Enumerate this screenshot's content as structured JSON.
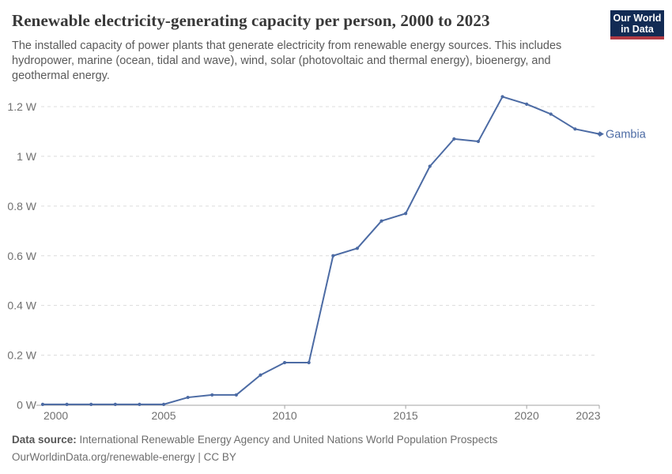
{
  "header": {
    "title": "Renewable electricity-generating capacity per person, 2000 to 2023",
    "subtitle": "The installed capacity of power plants that generate electricity from renewable energy sources. This includes hydropower, marine (ocean, tidal and wave), wind, solar (photovoltaic and thermal energy), bioenergy, and geothermal energy.",
    "logo": {
      "line1": "Our World",
      "line2": "in Data",
      "bg_color": "#122b54",
      "bar_color": "#b13a44"
    }
  },
  "chart_data": {
    "type": "line",
    "title": "Renewable electricity-generating capacity per person, 2000 to 2023",
    "x": [
      2000,
      2001,
      2002,
      2003,
      2004,
      2005,
      2006,
      2007,
      2008,
      2009,
      2010,
      2011,
      2012,
      2013,
      2014,
      2015,
      2016,
      2017,
      2018,
      2019,
      2020,
      2021,
      2022,
      2023
    ],
    "series": [
      {
        "name": "Gambia",
        "values": [
          0.002,
          0.002,
          0.002,
          0.002,
          0.002,
          0.002,
          0.03,
          0.04,
          0.04,
          0.12,
          0.17,
          0.17,
          0.6,
          0.63,
          0.74,
          0.77,
          0.96,
          1.07,
          1.06,
          1.24,
          1.21,
          1.17,
          1.11,
          1.09
        ]
      }
    ],
    "unit": "W",
    "xlabel": "",
    "ylabel": "",
    "xlim": [
      2000,
      2023
    ],
    "ylim": [
      0,
      1.3
    ],
    "x_ticks": [
      2000,
      2005,
      2010,
      2015,
      2020,
      2023
    ],
    "y_ticks": [
      {
        "value": 0,
        "label": "0 W"
      },
      {
        "value": 0.2,
        "label": "0.2 W"
      },
      {
        "value": 0.4,
        "label": "0.4 W"
      },
      {
        "value": 0.6,
        "label": "0.6 W"
      },
      {
        "value": 0.8,
        "label": "0.8 W"
      },
      {
        "value": 1,
        "label": "1 W"
      },
      {
        "value": 1.2,
        "label": "1.2 W"
      }
    ],
    "grid": true,
    "legend_position": "end-of-line",
    "line_color": "#4c6ba4",
    "grid_color": "#dcdcdc",
    "axis_color": "#a3a3a3",
    "tick_label_color": "#707070"
  },
  "footer": {
    "source_label": "Data source:",
    "source_text": "International Renewable Energy Agency and United Nations World Population Prospects",
    "link_text": "OurWorldinData.org/renewable-energy | CC BY"
  }
}
